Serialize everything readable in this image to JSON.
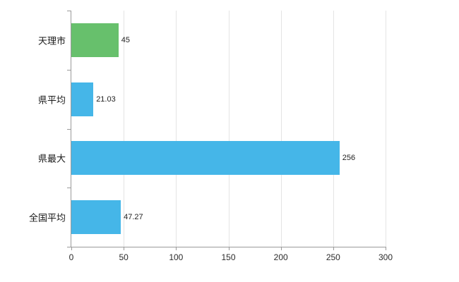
{
  "chart_data": {
    "type": "bar",
    "orientation": "horizontal",
    "title": "",
    "xlabel": "",
    "ylabel": "",
    "categories": [
      "天理市",
      "県平均",
      "県最大",
      "全国平均"
    ],
    "values": [
      45,
      21.03,
      256,
      47.27
    ],
    "value_labels": [
      "45",
      "21.03",
      "256",
      "47.27"
    ],
    "bar_colors": [
      "#67c06c",
      "#45b6e8",
      "#45b6e8",
      "#45b6e8"
    ],
    "xlim": [
      0,
      300
    ],
    "x_ticks": [
      0,
      50,
      100,
      150,
      200,
      250,
      300
    ],
    "x_tick_labels": [
      "0",
      "50",
      "100",
      "150",
      "200",
      "250",
      "300"
    ],
    "grid": "vertical",
    "legend": "none"
  },
  "colors": {
    "background": "#ffffff",
    "axis": "#9a9a9a",
    "gridline": "#e4e4e4",
    "text": "#1a1a1a"
  }
}
